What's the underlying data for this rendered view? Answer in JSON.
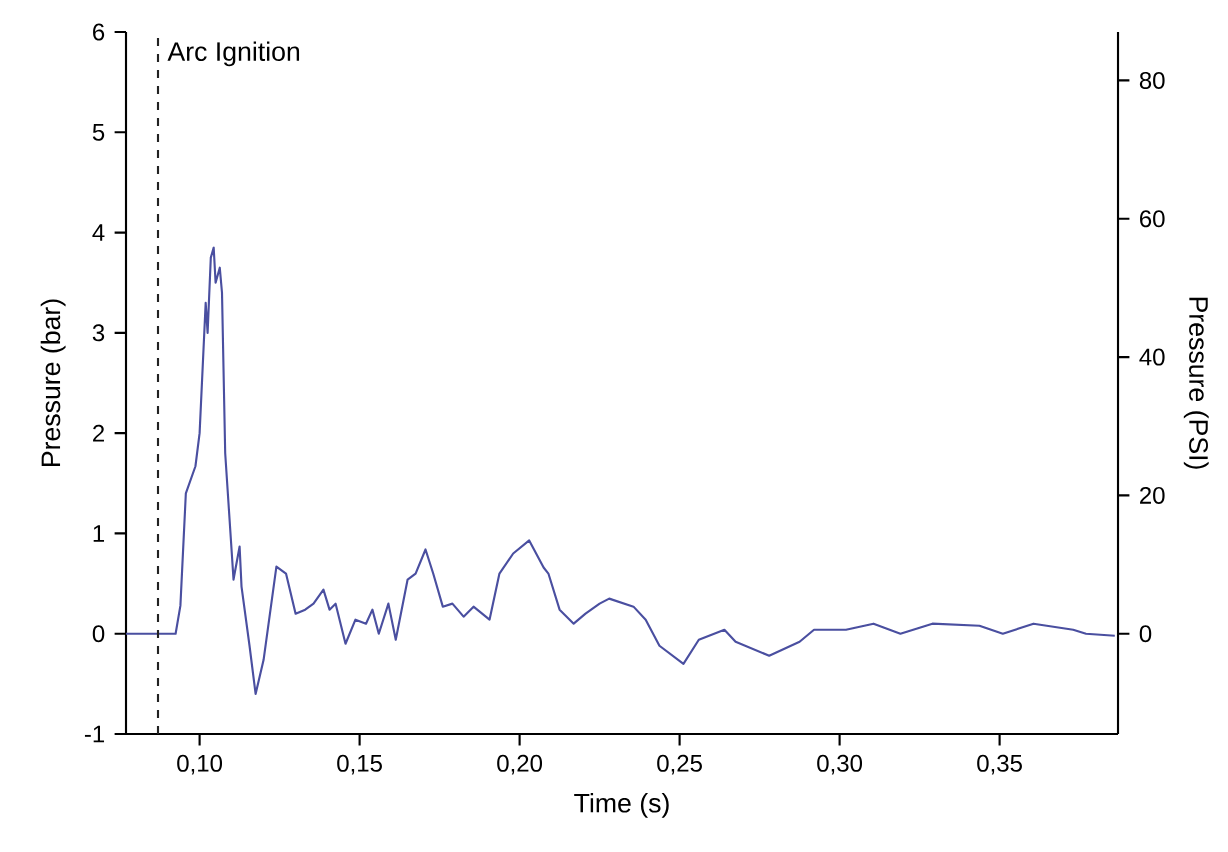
{
  "chart_data": {
    "type": "line",
    "xlabel": "Time (s)",
    "ylabel": "Pressure (bar)",
    "y2label": "Pressure (PSI)",
    "xlim": [
      0.077,
      0.387
    ],
    "ylim": [
      -1,
      6
    ],
    "y2lim": [
      -14.5,
      87
    ],
    "xticks": [
      {
        "value": 0.1,
        "label": "0,10"
      },
      {
        "value": 0.15,
        "label": "0,15"
      },
      {
        "value": 0.2,
        "label": "0,20"
      },
      {
        "value": 0.25,
        "label": "0,25"
      },
      {
        "value": 0.3,
        "label": "0,30"
      },
      {
        "value": 0.35,
        "label": "0,35"
      }
    ],
    "yticks": [
      -1,
      0,
      1,
      2,
      3,
      4,
      5,
      6
    ],
    "y2ticks": [
      0,
      20,
      40,
      60,
      80
    ],
    "marker": "none",
    "line_style": "solid",
    "ref_lines": [
      {
        "axis": "x",
        "value": 0.087,
        "label": "Arc Ignition",
        "color": "#222222",
        "line_style": "dashed"
      }
    ],
    "series": [
      {
        "color": "#4a4fa0",
        "x": [
          0.077,
          0.0925,
          0.094,
          0.0957,
          0.0987,
          0.1,
          0.1019,
          0.1025,
          0.1035,
          0.1044,
          0.105,
          0.1063,
          0.107,
          0.108,
          0.1106,
          0.1125,
          0.1131,
          0.1156,
          0.1175,
          0.12,
          0.124,
          0.127,
          0.13,
          0.133,
          0.1356,
          0.1387,
          0.1406,
          0.1425,
          0.1456,
          0.1487,
          0.152,
          0.154,
          0.156,
          0.159,
          0.1613,
          0.165,
          0.1675,
          0.1706,
          0.173,
          0.176,
          0.179,
          0.1825,
          0.1856,
          0.1906,
          0.1937,
          0.198,
          0.203,
          0.2075,
          0.209,
          0.2125,
          0.2169,
          0.2206,
          0.225,
          0.228,
          0.2356,
          0.2394,
          0.2437,
          0.2512,
          0.256,
          0.264,
          0.2675,
          0.278,
          0.2875,
          0.292,
          0.302,
          0.3106,
          0.319,
          0.329,
          0.3437,
          0.351,
          0.3606,
          0.373,
          0.377,
          0.386
        ],
        "values": [
          0,
          0,
          0.28,
          1.4,
          1.67,
          2.0,
          3.3,
          3.0,
          3.75,
          3.85,
          3.5,
          3.65,
          3.4,
          1.8,
          0.54,
          0.87,
          0.47,
          -0.12,
          -0.6,
          -0.26,
          0.67,
          0.6,
          0.2,
          0.24,
          0.3,
          0.44,
          0.24,
          0.3,
          -0.1,
          0.14,
          0.1,
          0.24,
          0.0,
          0.3,
          -0.06,
          0.54,
          0.6,
          0.84,
          0.6,
          0.27,
          0.3,
          0.17,
          0.27,
          0.14,
          0.6,
          0.8,
          0.93,
          0.66,
          0.6,
          0.24,
          0.1,
          0.2,
          0.3,
          0.35,
          0.27,
          0.14,
          -0.12,
          -0.3,
          -0.06,
          0.04,
          -0.08,
          -0.22,
          -0.08,
          0.04,
          0.04,
          0.1,
          0.0,
          0.1,
          0.08,
          0.0,
          0.1,
          0.04,
          0.0,
          -0.02
        ]
      }
    ]
  }
}
